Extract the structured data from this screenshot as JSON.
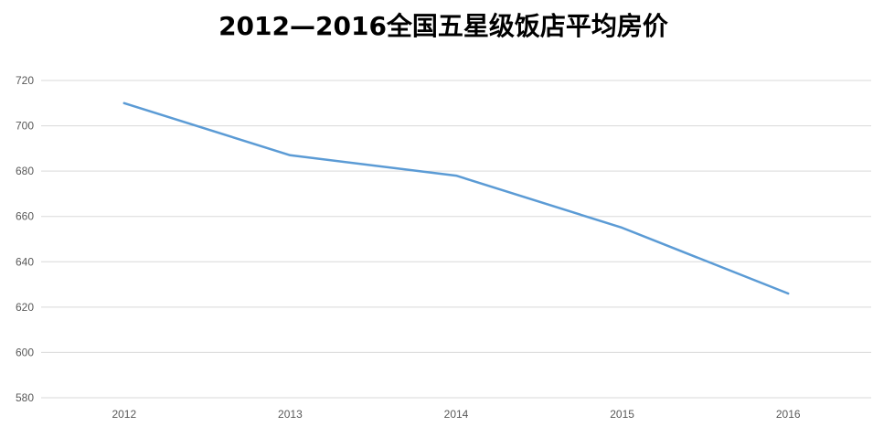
{
  "chart_data": {
    "type": "line",
    "title": "2012—2016全国五星级饭店平均房价",
    "xlabel": "",
    "ylabel": "",
    "categories": [
      "2012",
      "2013",
      "2014",
      "2015",
      "2016"
    ],
    "series": [
      {
        "values": [
          710,
          687,
          678,
          655,
          626
        ],
        "color": "#5b9bd5"
      }
    ],
    "ylim": [
      580,
      720
    ],
    "yticks": [
      580,
      600,
      620,
      640,
      660,
      680,
      700,
      720
    ],
    "grid": true,
    "legend": "none"
  }
}
